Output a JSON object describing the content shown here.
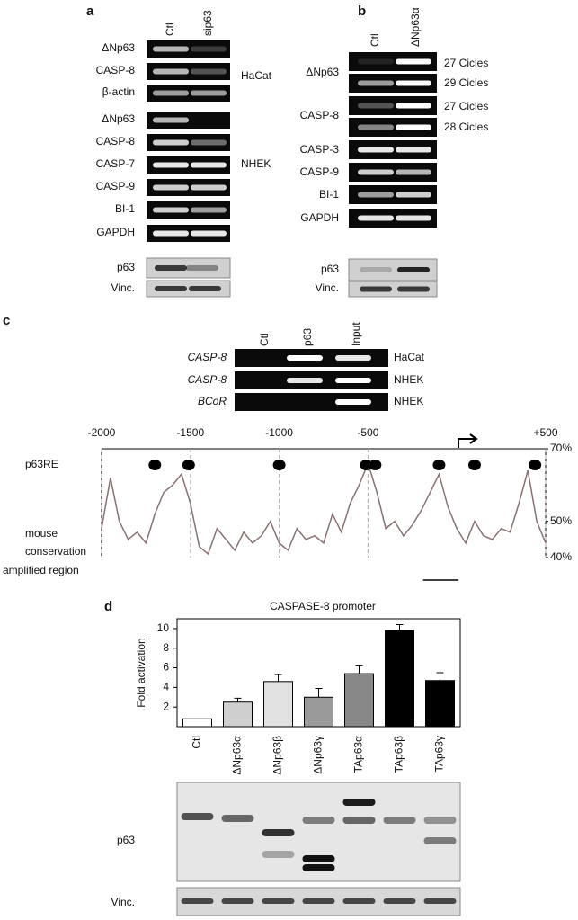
{
  "panel_a": {
    "label": "a",
    "lanes": [
      "Ctl",
      "sip63"
    ],
    "rows": [
      "ΔNp63",
      "CASP-8",
      "β-actin",
      "ΔNp63",
      "CASP-8",
      "CASP-7",
      "CASP-9",
      "BI-1",
      "GAPDH"
    ],
    "cells": [
      "HaCat",
      "NHEK"
    ],
    "western": [
      "p63",
      "Vinc."
    ]
  },
  "panel_b": {
    "label": "b",
    "lanes": [
      "Ctl",
      "ΔNp63α"
    ],
    "rows": [
      "ΔNp63",
      "CASP-8",
      "CASP-3",
      "CASP-9",
      "BI-1",
      "GAPDH"
    ],
    "cycles": [
      "27 Cicles",
      "29 Cicles",
      "27 Cicles",
      "28 Cicles"
    ],
    "western": [
      "p63",
      "Vinc."
    ]
  },
  "panel_c": {
    "label": "c",
    "lanes": [
      "Ctl",
      "p63",
      "Input"
    ],
    "rows": [
      {
        "gene": "CASP-8",
        "cell": "HaCat"
      },
      {
        "gene": "CASP-8",
        "cell": "NHEK"
      },
      {
        "gene": "BCoR",
        "cell": "NHEK"
      }
    ]
  },
  "panel_d": {
    "label": "d",
    "western": [
      "p63",
      "Vinc."
    ]
  },
  "chart_data": [
    {
      "type": "bar",
      "title": "CASPASE-8 promoter",
      "y_label": "Fold  activation",
      "categories": [
        "Ctl",
        "ΔNp63α",
        "ΔNp63β",
        "ΔNp63γ",
        "TAp63α",
        "TAp63β",
        "TAp63γ"
      ],
      "values": [
        0.8,
        2.5,
        4.6,
        3.0,
        5.4,
        9.8,
        4.7
      ],
      "errors": [
        null,
        0.4,
        0.7,
        0.9,
        0.8,
        0.6,
        0.8
      ],
      "colors": [
        "#ffffff",
        "#cfcfcf",
        "#e2e2e2",
        "#9a9a9a",
        "#888888",
        "#000000",
        "#000000"
      ],
      "ylim": [
        0,
        11
      ],
      "yticks": [
        2,
        4,
        6,
        8,
        10
      ]
    },
    {
      "type": "line",
      "series_name": "p63RE",
      "label_lines": [
        "mouse",
        "conservation"
      ],
      "region_label": "amplified region",
      "color": "#8a7070",
      "x": [
        -2000,
        -1950,
        -1900,
        -1850,
        -1800,
        -1750,
        -1700,
        -1650,
        -1600,
        -1550,
        -1500,
        -1450,
        -1400,
        -1350,
        -1300,
        -1250,
        -1200,
        -1150,
        -1100,
        -1050,
        -1000,
        -950,
        -900,
        -850,
        -800,
        -750,
        -700,
        -650,
        -600,
        -550,
        -500,
        -450,
        -400,
        -350,
        -300,
        -250,
        -200,
        -150,
        -100,
        -50,
        0,
        50,
        100,
        150,
        200,
        250,
        300,
        350,
        400,
        450,
        500
      ],
      "values": [
        48,
        62,
        50,
        45,
        47,
        44,
        52,
        58,
        60,
        63,
        55,
        43,
        41,
        48,
        45,
        42,
        47,
        44,
        46,
        50,
        44,
        42,
        48,
        45,
        46,
        44,
        52,
        47,
        55,
        60,
        66,
        58,
        48,
        50,
        46,
        49,
        53,
        58,
        63,
        54,
        48,
        44,
        50,
        46,
        45,
        48,
        47,
        55,
        64,
        50,
        44
      ],
      "p63re": [
        -1700,
        -1510,
        -1000,
        -510,
        -460,
        -100,
        100,
        440
      ],
      "amplified_region": [
        -190,
        10
      ],
      "xlim": [
        -2000,
        500
      ],
      "xticks": [
        -2000,
        -1500,
        -1000,
        -500,
        {
          "value": 500,
          "label": "+500"
        }
      ],
      "ylim": [
        40,
        70
      ],
      "yticks": [
        {
          "value": 70,
          "label": "70%"
        },
        {
          "value": 50,
          "label": "50%"
        },
        {
          "value": 40,
          "label": "40%"
        }
      ]
    }
  ]
}
